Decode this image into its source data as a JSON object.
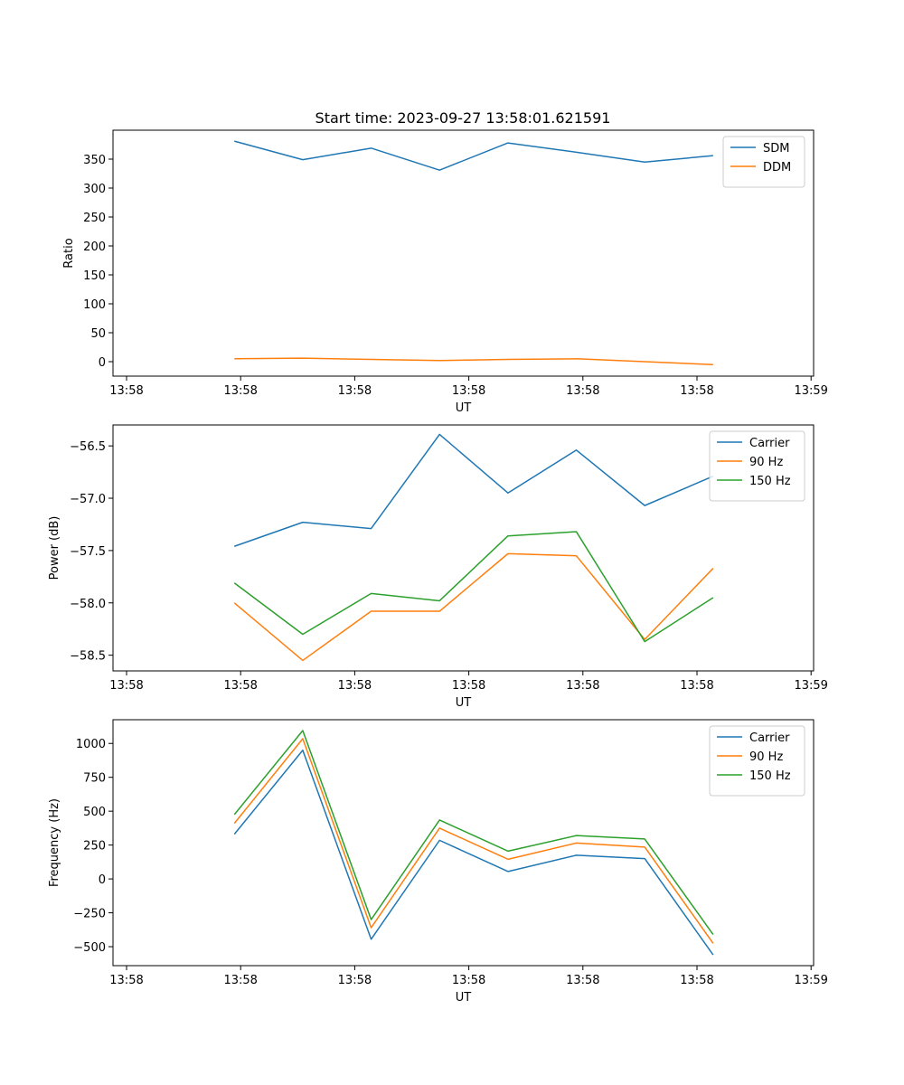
{
  "figure_title": "Start time: 2023-09-27 13:58:01.621591",
  "chart_data": [
    {
      "type": "line",
      "title": "Start time: 2023-09-27 13:58:01.621591",
      "xlabel": "UT",
      "ylabel": "Ratio",
      "x_tick_labels": [
        "13:58",
        "13:58",
        "13:58",
        "13:58",
        "13:58",
        "13:58",
        "13:59"
      ],
      "xlim": [
        -0.47,
        8.79
      ],
      "x": [
        1,
        2,
        3,
        4,
        5,
        6,
        7,
        8
      ],
      "ylim": [
        -25,
        400
      ],
      "y_ticks": [
        0,
        50,
        100,
        150,
        200,
        250,
        300,
        350
      ],
      "y_tick_labels": [
        "0",
        "50",
        "100",
        "150",
        "200",
        "250",
        "300",
        "350"
      ],
      "legend_position": "top-right",
      "series": [
        {
          "name": "SDM",
          "color": "#1f77b4",
          "values": [
            381,
            349,
            369,
            331,
            378,
            362,
            345,
            356
          ]
        },
        {
          "name": "DDM",
          "color": "#ff7f0e",
          "values": [
            5,
            6,
            4,
            2,
            4,
            5,
            0,
            -5
          ]
        }
      ]
    },
    {
      "type": "line",
      "title": "",
      "xlabel": "UT",
      "ylabel": "Power (dB)",
      "x_tick_labels": [
        "13:58",
        "13:58",
        "13:58",
        "13:58",
        "13:58",
        "13:58",
        "13:59"
      ],
      "xlim": [
        -0.47,
        8.79
      ],
      "x": [
        1,
        2,
        3,
        4,
        5,
        6,
        7,
        8
      ],
      "ylim": [
        -58.65,
        -56.3
      ],
      "y_ticks": [
        -58.5,
        -58.0,
        -57.5,
        -57.0,
        -56.5
      ],
      "y_tick_labels": [
        "−58.5",
        "−58.0",
        "−57.5",
        "−57.0",
        "−56.5"
      ],
      "legend_position": "top-right",
      "series": [
        {
          "name": "Carrier",
          "color": "#1f77b4",
          "values": [
            -57.46,
            -57.23,
            -57.29,
            -56.39,
            -56.95,
            -56.54,
            -57.07,
            -56.79
          ]
        },
        {
          "name": "90 Hz",
          "color": "#ff7f0e",
          "values": [
            -58.0,
            -58.55,
            -58.08,
            -58.08,
            -57.53,
            -57.55,
            -58.35,
            -57.67
          ]
        },
        {
          "name": "150 Hz",
          "color": "#2ca02c",
          "values": [
            -57.81,
            -58.3,
            -57.91,
            -57.98,
            -57.36,
            -57.32,
            -58.37,
            -57.95
          ]
        }
      ]
    },
    {
      "type": "line",
      "title": "",
      "xlabel": "UT",
      "ylabel": "Frequency (Hz)",
      "x_tick_labels": [
        "13:58",
        "13:58",
        "13:58",
        "13:58",
        "13:58",
        "13:58",
        "13:59"
      ],
      "xlim": [
        -0.47,
        8.79
      ],
      "x": [
        1,
        2,
        3,
        4,
        5,
        6,
        7,
        8
      ],
      "ylim": [
        -640,
        1175
      ],
      "y_ticks": [
        -500,
        -250,
        0,
        250,
        500,
        750,
        1000
      ],
      "y_tick_labels": [
        "−500",
        "−250",
        "0",
        "250",
        "500",
        "750",
        "1000"
      ],
      "legend_position": "top-right",
      "series": [
        {
          "name": "Carrier",
          "color": "#1f77b4",
          "values": [
            330,
            950,
            -445,
            285,
            55,
            175,
            150,
            -560
          ]
        },
        {
          "name": "90 Hz",
          "color": "#ff7f0e",
          "values": [
            410,
            1035,
            -360,
            375,
            145,
            265,
            235,
            -475
          ]
        },
        {
          "name": "150 Hz",
          "color": "#2ca02c",
          "values": [
            475,
            1095,
            -300,
            435,
            205,
            320,
            295,
            -410
          ]
        }
      ]
    }
  ]
}
